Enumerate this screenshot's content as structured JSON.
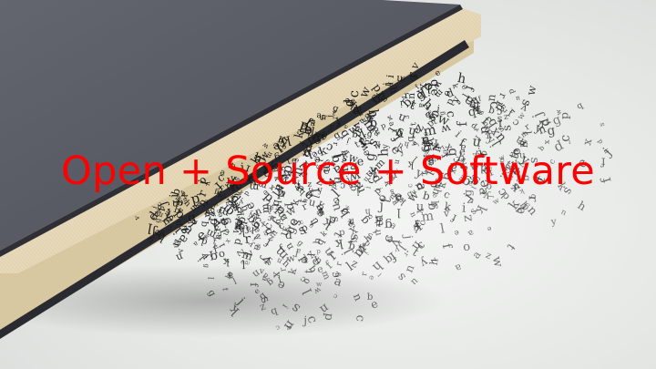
{
  "slide": {
    "headline": "Open + Source + Software"
  },
  "image": {
    "subject": "book-with-letters-spilling-out-icon"
  },
  "colors": {
    "headline": "#ff0000",
    "background": "#e9ebe9",
    "book_cover": "#5b5d66",
    "book_cover_dark": "#44464e",
    "page_edge": "#e8dcc0",
    "letters": "#1a1a1a"
  }
}
